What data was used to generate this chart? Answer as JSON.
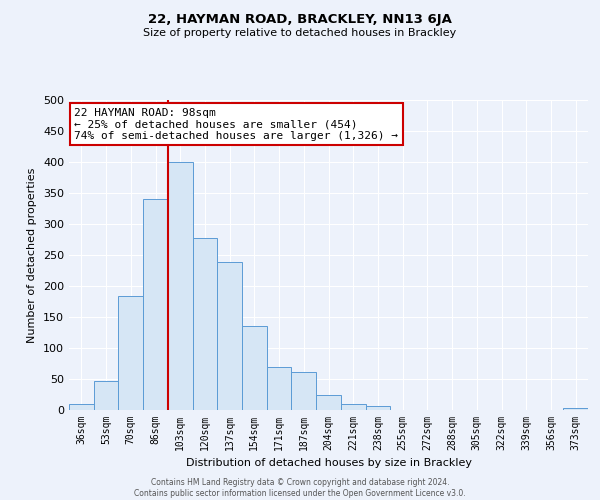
{
  "title": "22, HAYMAN ROAD, BRACKLEY, NN13 6JA",
  "subtitle": "Size of property relative to detached houses in Brackley",
  "xlabel": "Distribution of detached houses by size in Brackley",
  "ylabel": "Number of detached properties",
  "bar_labels": [
    "36sqm",
    "53sqm",
    "70sqm",
    "86sqm",
    "103sqm",
    "120sqm",
    "137sqm",
    "154sqm",
    "171sqm",
    "187sqm",
    "204sqm",
    "221sqm",
    "238sqm",
    "255sqm",
    "272sqm",
    "288sqm",
    "305sqm",
    "322sqm",
    "339sqm",
    "356sqm",
    "373sqm"
  ],
  "bar_values": [
    10,
    47,
    184,
    340,
    400,
    278,
    238,
    135,
    70,
    61,
    25,
    10,
    6,
    0,
    0,
    0,
    0,
    0,
    0,
    0,
    3
  ],
  "bar_color": "#d6e6f5",
  "bar_edge_color": "#5b9bd5",
  "vline_color": "#cc0000",
  "annotation_text": "22 HAYMAN ROAD: 98sqm\n← 25% of detached houses are smaller (454)\n74% of semi-detached houses are larger (1,326) →",
  "annotation_box_color": "white",
  "annotation_box_edge_color": "#cc0000",
  "ylim": [
    0,
    500
  ],
  "yticks": [
    0,
    50,
    100,
    150,
    200,
    250,
    300,
    350,
    400,
    450,
    500
  ],
  "footer_text": "Contains HM Land Registry data © Crown copyright and database right 2024.\nContains public sector information licensed under the Open Government Licence v3.0.",
  "background_color": "#edf2fb",
  "grid_color": "#ffffff",
  "vline_bar_index": 3.5
}
